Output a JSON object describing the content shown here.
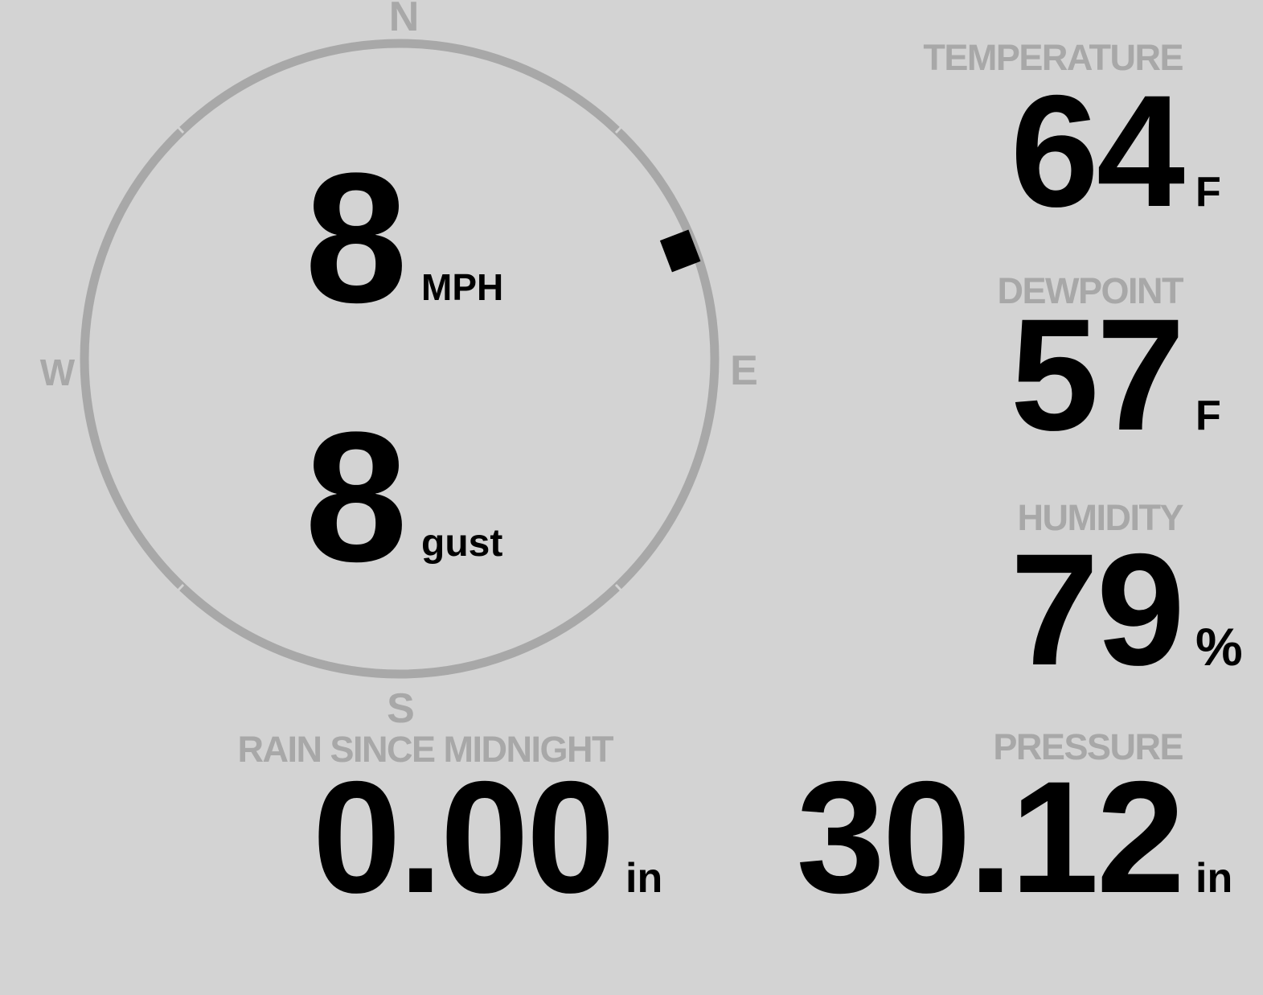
{
  "colors": {
    "background": "#d3d3d3",
    "muted_gray": "#a8a8a8",
    "value_black": "#000000"
  },
  "wind": {
    "speed_value": "8",
    "speed_unit": "MPH",
    "gust_value": "8",
    "gust_unit": "gust",
    "direction_degrees": 69,
    "compass": {
      "north": "N",
      "east": "E",
      "south": "S",
      "west": "W"
    }
  },
  "metrics": {
    "temperature": {
      "label": "TEMPERATURE",
      "value": "64",
      "unit": "F"
    },
    "dewpoint": {
      "label": "DEWPOINT",
      "value": "57",
      "unit": "F"
    },
    "humidity": {
      "label": "HUMIDITY",
      "value": "79",
      "unit": "%"
    },
    "rain": {
      "label": "RAIN SINCE MIDNIGHT",
      "value": "0.00",
      "unit": "in"
    },
    "pressure": {
      "label": "PRESSURE",
      "value": "30.12",
      "unit": "in"
    }
  }
}
